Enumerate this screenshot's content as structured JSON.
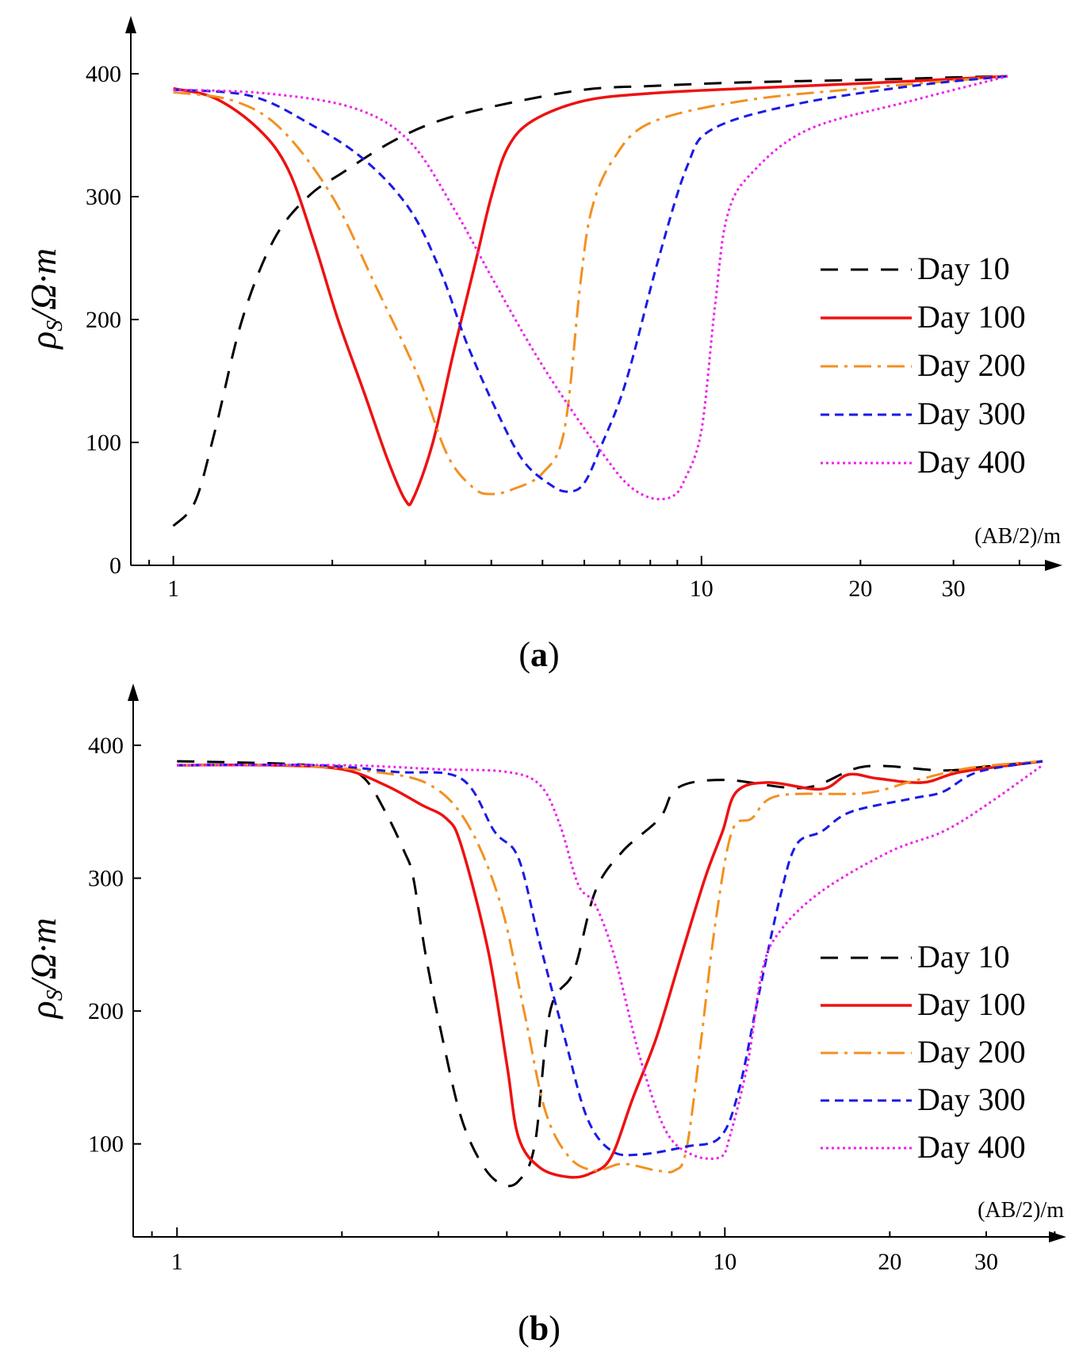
{
  "colors": {
    "Day 10": "#000000",
    "Day 100": "#ee1111",
    "Day 200": "#f39020",
    "Day 300": "#1a1ae6",
    "Day 400": "#ee22ee"
  },
  "dash": {
    "Day 10": "22 16",
    "Day 100": "",
    "Day 200": "22 8 4 8",
    "Day 300": "11 7",
    "Day 400": "3 4"
  },
  "chart_data": [
    {
      "type": "line",
      "panel": "a",
      "caption_open": "(",
      "caption_letter": "a",
      "caption_close": ")",
      "ylabel_rho": "ρ",
      "ylabel_sub": "S",
      "ylabel_unit": "/Ω·m",
      "xlabel": "(AB/2)/m",
      "xscale": "log",
      "xlim": [
        0.86,
        42
      ],
      "ylim": [
        0,
        450
      ],
      "yticks": [
        0,
        100,
        200,
        300,
        400
      ],
      "ytick_labels": [
        "0",
        "100",
        "200",
        "300",
        "400"
      ],
      "xticks": [
        1,
        10,
        20,
        30
      ],
      "xtick_labels": [
        "1",
        "10",
        "20",
        "30"
      ],
      "legend": [
        "Day 10",
        "Day 100",
        "Day 200",
        "Day 300",
        "Day 400"
      ],
      "series": [
        {
          "name": "Day 10",
          "points": [
            [
              1.0,
              32
            ],
            [
              1.1,
              52
            ],
            [
              1.2,
              110
            ],
            [
              1.35,
              200
            ],
            [
              1.55,
              265
            ],
            [
              1.8,
              300
            ],
            [
              2.1,
              320
            ],
            [
              2.6,
              345
            ],
            [
              3.2,
              362
            ],
            [
              4.2,
              375
            ],
            [
              6,
              387
            ],
            [
              8,
              390
            ],
            [
              12,
              393
            ],
            [
              20,
              395
            ],
            [
              30,
              397
            ],
            [
              38,
              398
            ]
          ]
        },
        {
          "name": "Day 100",
          "points": [
            [
              1.0,
              388
            ],
            [
              1.2,
              380
            ],
            [
              1.45,
              355
            ],
            [
              1.65,
              322
            ],
            [
              1.85,
              262
            ],
            [
              2.05,
              200
            ],
            [
              2.3,
              140
            ],
            [
              2.55,
              85
            ],
            [
              2.75,
              53
            ],
            [
              2.85,
              55
            ],
            [
              3.1,
              100
            ],
            [
              3.4,
              175
            ],
            [
              3.75,
              250
            ],
            [
              4.0,
              300
            ],
            [
              4.3,
              340
            ],
            [
              4.8,
              362
            ],
            [
              6,
              378
            ],
            [
              8,
              384
            ],
            [
              12,
              388
            ],
            [
              20,
              392
            ],
            [
              38,
              398
            ]
          ]
        },
        {
          "name": "Day 200",
          "points": [
            [
              1.0,
              385
            ],
            [
              1.3,
              378
            ],
            [
              1.6,
              355
            ],
            [
              2.0,
              300
            ],
            [
              2.4,
              230
            ],
            [
              2.9,
              155
            ],
            [
              3.3,
              90
            ],
            [
              3.7,
              63
            ],
            [
              4.0,
              58
            ],
            [
              4.4,
              62
            ],
            [
              5.0,
              75
            ],
            [
              5.5,
              110
            ],
            [
              5.9,
              230
            ],
            [
              6.2,
              290
            ],
            [
              6.8,
              330
            ],
            [
              8,
              360
            ],
            [
              12,
              378
            ],
            [
              20,
              388
            ],
            [
              38,
              398
            ]
          ]
        },
        {
          "name": "Day 300",
          "points": [
            [
              1.0,
              387
            ],
            [
              1.4,
              382
            ],
            [
              1.8,
              360
            ],
            [
              2.3,
              330
            ],
            [
              2.8,
              290
            ],
            [
              3.2,
              240
            ],
            [
              3.6,
              180
            ],
            [
              4.1,
              125
            ],
            [
              4.6,
              85
            ],
            [
              5.2,
              65
            ],
            [
              5.6,
              60
            ],
            [
              6.0,
              67
            ],
            [
              6.5,
              100
            ],
            [
              7.2,
              150
            ],
            [
              8.3,
              250
            ],
            [
              9.4,
              325
            ],
            [
              10.5,
              355
            ],
            [
              15,
              375
            ],
            [
              25,
              390
            ],
            [
              38,
              398
            ]
          ]
        },
        {
          "name": "Day 400",
          "points": [
            [
              1.0,
              387
            ],
            [
              1.5,
              384
            ],
            [
              2.2,
              372
            ],
            [
              2.8,
              345
            ],
            [
              3.4,
              290
            ],
            [
              4.0,
              235
            ],
            [
              4.8,
              175
            ],
            [
              5.6,
              130
            ],
            [
              6.4,
              95
            ],
            [
              7.2,
              67
            ],
            [
              8.0,
              55
            ],
            [
              8.8,
              56
            ],
            [
              9.3,
              70
            ],
            [
              10.0,
              110
            ],
            [
              10.6,
              210
            ],
            [
              11.2,
              285
            ],
            [
              12.5,
              320
            ],
            [
              16,
              355
            ],
            [
              25,
              378
            ],
            [
              38,
              398
            ]
          ]
        }
      ]
    },
    {
      "type": "line",
      "panel": "b",
      "caption_open": "(",
      "caption_letter": "b",
      "caption_close": ")",
      "ylabel_rho": "ρ",
      "ylabel_sub": "S",
      "ylabel_unit": "/Ω·m",
      "xlabel": "(AB/2)/m",
      "xscale": "log",
      "xlim": [
        0.86,
        42
      ],
      "ylim": [
        30,
        455
      ],
      "yticks": [
        100,
        200,
        300,
        400
      ],
      "ytick_labels": [
        "100",
        "200",
        "300",
        "400"
      ],
      "xticks": [
        1,
        10,
        20,
        30
      ],
      "xtick_labels": [
        "1",
        "10",
        "20",
        "30"
      ],
      "legend": [
        "Day 10",
        "Day 100",
        "Day 200",
        "Day 300",
        "Day 400"
      ],
      "series": [
        {
          "name": "Day 10",
          "points": [
            [
              1.0,
              388
            ],
            [
              1.6,
              386
            ],
            [
              2.0,
              382
            ],
            [
              2.2,
              375
            ],
            [
              2.4,
              350
            ],
            [
              2.6,
              320
            ],
            [
              2.7,
              300
            ],
            [
              2.85,
              240
            ],
            [
              3.05,
              180
            ],
            [
              3.3,
              120
            ],
            [
              3.6,
              85
            ],
            [
              3.9,
              70
            ],
            [
              4.2,
              72
            ],
            [
              4.5,
              100
            ],
            [
              4.8,
              200
            ],
            [
              5.3,
              230
            ],
            [
              5.8,
              290
            ],
            [
              6.5,
              320
            ],
            [
              7.6,
              345
            ],
            [
              8.2,
              368
            ],
            [
              10,
              374
            ],
            [
              14,
              368
            ],
            [
              18,
              384
            ],
            [
              25,
              381
            ],
            [
              30,
              384
            ],
            [
              38,
              388
            ]
          ]
        },
        {
          "name": "Day 100",
          "points": [
            [
              1.0,
              385
            ],
            [
              1.5,
              385
            ],
            [
              2.0,
              382
            ],
            [
              2.4,
              370
            ],
            [
              2.8,
              355
            ],
            [
              3.1,
              345
            ],
            [
              3.3,
              325
            ],
            [
              3.7,
              245
            ],
            [
              4.0,
              160
            ],
            [
              4.2,
              105
            ],
            [
              4.6,
              82
            ],
            [
              5.2,
              75
            ],
            [
              5.7,
              78
            ],
            [
              6.2,
              90
            ],
            [
              6.8,
              135
            ],
            [
              7.5,
              180
            ],
            [
              8.3,
              240
            ],
            [
              9.2,
              300
            ],
            [
              9.9,
              335
            ],
            [
              10.5,
              365
            ],
            [
              12,
              372
            ],
            [
              15,
              367
            ],
            [
              16.8,
              378
            ],
            [
              19,
              375
            ],
            [
              23,
              372
            ],
            [
              27,
              380
            ],
            [
              38,
              388
            ]
          ]
        },
        {
          "name": "Day 200",
          "points": [
            [
              1.0,
              385
            ],
            [
              1.6,
              385
            ],
            [
              2.3,
              380
            ],
            [
              2.9,
              370
            ],
            [
              3.4,
              340
            ],
            [
              3.9,
              280
            ],
            [
              4.3,
              200
            ],
            [
              4.7,
              125
            ],
            [
              5.2,
              90
            ],
            [
              5.8,
              80
            ],
            [
              6.5,
              85
            ],
            [
              7.5,
              80
            ],
            [
              8.1,
              80
            ],
            [
              8.5,
              95
            ],
            [
              9.0,
              170
            ],
            [
              9.6,
              265
            ],
            [
              10.3,
              335
            ],
            [
              11.2,
              345
            ],
            [
              12.5,
              362
            ],
            [
              18,
              364
            ],
            [
              22,
              373
            ],
            [
              28,
              383
            ],
            [
              38,
              388
            ]
          ]
        },
        {
          "name": "Day 300",
          "points": [
            [
              1.0,
              385
            ],
            [
              1.8,
              385
            ],
            [
              2.5,
              380
            ],
            [
              3.3,
              375
            ],
            [
              3.8,
              335
            ],
            [
              4.2,
              315
            ],
            [
              4.6,
              250
            ],
            [
              5.1,
              180
            ],
            [
              5.6,
              120
            ],
            [
              6.2,
              95
            ],
            [
              7.0,
              92
            ],
            [
              8.5,
              98
            ],
            [
              9.8,
              105
            ],
            [
              10.6,
              140
            ],
            [
              11.5,
              210
            ],
            [
              12.6,
              285
            ],
            [
              13.5,
              325
            ],
            [
              15,
              335
            ],
            [
              17,
              350
            ],
            [
              22,
              360
            ],
            [
              25,
              365
            ],
            [
              29,
              380
            ],
            [
              38,
              388
            ]
          ]
        },
        {
          "name": "Day 400",
          "points": [
            [
              1.0,
              385
            ],
            [
              2.0,
              385
            ],
            [
              3.0,
              382
            ],
            [
              4.0,
              380
            ],
            [
              4.6,
              370
            ],
            [
              5.0,
              340
            ],
            [
              5.4,
              295
            ],
            [
              5.8,
              280
            ],
            [
              6.3,
              240
            ],
            [
              7.0,
              165
            ],
            [
              7.8,
              110
            ],
            [
              8.7,
              92
            ],
            [
              9.8,
              90
            ],
            [
              10.2,
              105
            ],
            [
              11.0,
              160
            ],
            [
              11.7,
              230
            ],
            [
              12.6,
              260
            ],
            [
              15,
              290
            ],
            [
              20,
              320
            ],
            [
              25,
              335
            ],
            [
              30,
              355
            ],
            [
              38,
              385
            ]
          ]
        }
      ]
    }
  ]
}
